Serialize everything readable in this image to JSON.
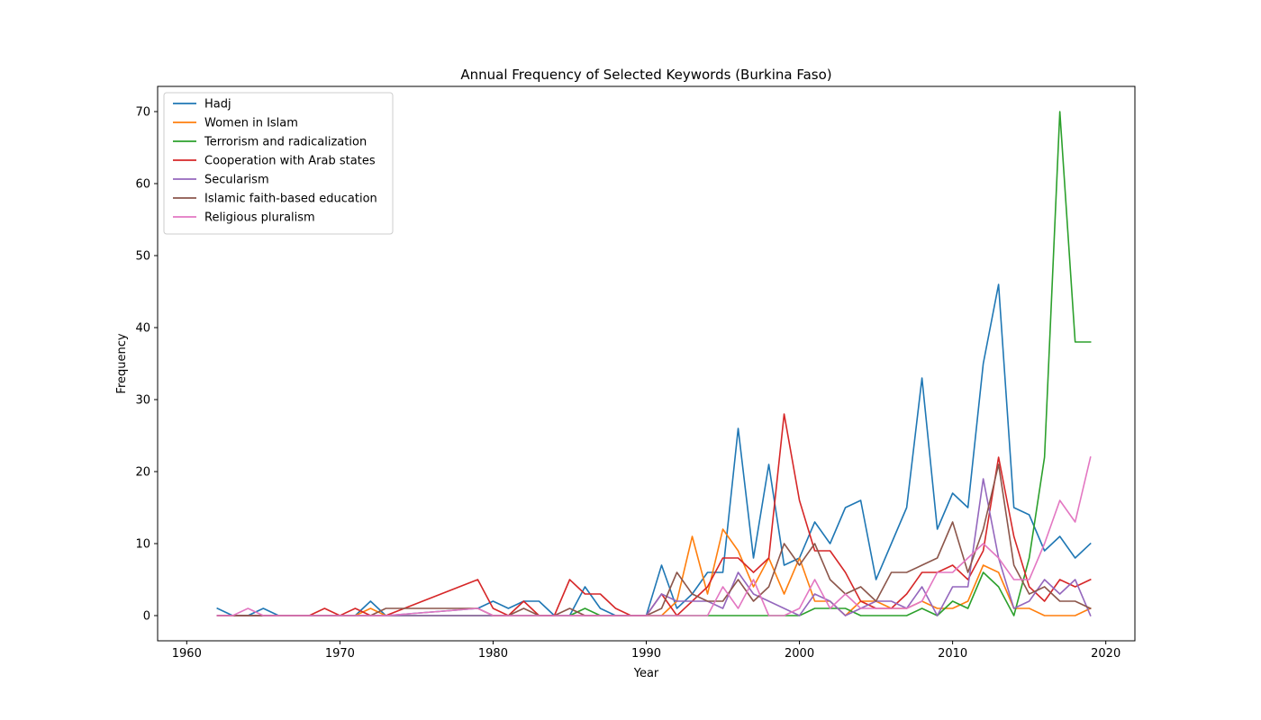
{
  "chart_data": {
    "type": "line",
    "title": "Annual Frequency of Selected Keywords (Burkina Faso)",
    "xlabel": "Year",
    "ylabel": "Frequency",
    "xlim": [
      1958.1,
      2021.9
    ],
    "ylim": [
      -3.5,
      73.5
    ],
    "xticks": [
      1960,
      1970,
      1980,
      1990,
      2000,
      2010,
      2020
    ],
    "yticks": [
      0,
      10,
      20,
      30,
      40,
      50,
      60,
      70
    ],
    "grid": false,
    "legend_position": "top-left",
    "series": [
      {
        "name": "Hadj",
        "color": "#1f77b4",
        "x": [
          1962,
          1963,
          1964,
          1965,
          1966,
          1967,
          1968,
          1969,
          1970,
          1971,
          1972,
          1973,
          1979,
          1980,
          1981,
          1982,
          1983,
          1984,
          1985,
          1986,
          1987,
          1988,
          1989,
          1990,
          1991,
          1992,
          1993,
          1994,
          1995,
          1996,
          1997,
          1998,
          1999,
          2000,
          2001,
          2002,
          2003,
          2004,
          2005,
          2006,
          2007,
          2008,
          2009,
          2010,
          2011,
          2012,
          2013,
          2014,
          2015,
          2016,
          2017,
          2018,
          2019
        ],
        "y": [
          1,
          0,
          0,
          1,
          0,
          0,
          0,
          0,
          0,
          0,
          2,
          0,
          1,
          2,
          1,
          2,
          2,
          0,
          0,
          4,
          1,
          0,
          0,
          0,
          7,
          1,
          3,
          6,
          6,
          26,
          8,
          21,
          7,
          8,
          13,
          10,
          15,
          16,
          5,
          10,
          15,
          33,
          12,
          17,
          15,
          35,
          46,
          15,
          14,
          9,
          11,
          8,
          10
        ]
      },
      {
        "name": "Women in Islam",
        "color": "#ff7f0e",
        "x": [
          1962,
          1963,
          1964,
          1965,
          1966,
          1967,
          1968,
          1969,
          1970,
          1971,
          1972,
          1973,
          1979,
          1980,
          1981,
          1982,
          1983,
          1984,
          1985,
          1986,
          1987,
          1988,
          1989,
          1990,
          1991,
          1992,
          1993,
          1994,
          1995,
          1996,
          1997,
          1998,
          1999,
          2000,
          2001,
          2002,
          2003,
          2004,
          2005,
          2006,
          2007,
          2008,
          2009,
          2010,
          2011,
          2012,
          2013,
          2014,
          2015,
          2016,
          2017,
          2018,
          2019
        ],
        "y": [
          0,
          0,
          0,
          0,
          0,
          0,
          0,
          0,
          0,
          0,
          1,
          0,
          0,
          0,
          0,
          0,
          0,
          0,
          0,
          0,
          0,
          0,
          0,
          0,
          0,
          2,
          11,
          3,
          12,
          9,
          4,
          8,
          3,
          8,
          2,
          2,
          0,
          2,
          2,
          1,
          1,
          2,
          1,
          1,
          2,
          7,
          6,
          1,
          1,
          0,
          0,
          0,
          1
        ]
      },
      {
        "name": "Terrorism and radicalization",
        "color": "#2ca02c",
        "x": [
          1962,
          1963,
          1964,
          1965,
          1966,
          1967,
          1968,
          1969,
          1970,
          1971,
          1972,
          1973,
          1979,
          1980,
          1981,
          1982,
          1983,
          1984,
          1985,
          1986,
          1987,
          1988,
          1989,
          1990,
          1991,
          1992,
          1993,
          1994,
          1995,
          1996,
          1997,
          1998,
          1999,
          2000,
          2001,
          2002,
          2003,
          2004,
          2005,
          2006,
          2007,
          2008,
          2009,
          2010,
          2011,
          2012,
          2013,
          2014,
          2015,
          2016,
          2017,
          2018,
          2019
        ],
        "y": [
          0,
          0,
          0,
          0,
          0,
          0,
          0,
          0,
          0,
          0,
          0,
          0,
          0,
          0,
          0,
          0,
          0,
          0,
          0,
          1,
          0,
          0,
          0,
          0,
          0,
          0,
          0,
          0,
          0,
          0,
          0,
          0,
          0,
          0,
          1,
          1,
          1,
          0,
          0,
          0,
          0,
          1,
          0,
          2,
          1,
          6,
          4,
          0,
          8,
          22,
          70,
          38,
          38
        ]
      },
      {
        "name": "Cooperation with Arab states",
        "color": "#d62728",
        "x": [
          1962,
          1963,
          1964,
          1965,
          1966,
          1967,
          1968,
          1969,
          1970,
          1971,
          1972,
          1973,
          1979,
          1980,
          1981,
          1982,
          1983,
          1984,
          1985,
          1986,
          1987,
          1988,
          1989,
          1990,
          1991,
          1992,
          1993,
          1994,
          1995,
          1996,
          1997,
          1998,
          1999,
          2000,
          2001,
          2002,
          2003,
          2004,
          2005,
          2006,
          2007,
          2008,
          2009,
          2010,
          2011,
          2012,
          2013,
          2014,
          2015,
          2016,
          2017,
          2018,
          2019
        ],
        "y": [
          0,
          0,
          0,
          0,
          0,
          0,
          0,
          1,
          0,
          1,
          0,
          0,
          5,
          1,
          0,
          2,
          0,
          0,
          5,
          3,
          3,
          1,
          0,
          0,
          3,
          0,
          2,
          4,
          8,
          8,
          6,
          8,
          28,
          16,
          9,
          9,
          6,
          2,
          1,
          1,
          3,
          6,
          6,
          7,
          5,
          9,
          22,
          11,
          4,
          2,
          5,
          4,
          5
        ]
      },
      {
        "name": "Secularism",
        "color": "#9467bd",
        "x": [
          1962,
          1963,
          1964,
          1965,
          1966,
          1967,
          1968,
          1969,
          1970,
          1971,
          1972,
          1973,
          1979,
          1980,
          1981,
          1982,
          1983,
          1984,
          1985,
          1986,
          1987,
          1988,
          1989,
          1990,
          1991,
          1992,
          1993,
          1994,
          1995,
          1996,
          1997,
          1998,
          1999,
          2000,
          2001,
          2002,
          2003,
          2004,
          2005,
          2006,
          2007,
          2008,
          2009,
          2010,
          2011,
          2012,
          2013,
          2014,
          2015,
          2016,
          2017,
          2018,
          2019
        ],
        "y": [
          0,
          0,
          0,
          0,
          0,
          0,
          0,
          0,
          0,
          0,
          0,
          0,
          0,
          0,
          0,
          0,
          0,
          0,
          0,
          0,
          0,
          0,
          0,
          0,
          3,
          2,
          2,
          2,
          1,
          6,
          3,
          2,
          1,
          0,
          3,
          2,
          0,
          1,
          2,
          2,
          1,
          4,
          0,
          4,
          4,
          19,
          8,
          1,
          2,
          5,
          3,
          5,
          0
        ]
      },
      {
        "name": "Islamic faith-based education",
        "color": "#8c564b",
        "x": [
          1962,
          1963,
          1964,
          1965,
          1966,
          1967,
          1968,
          1969,
          1970,
          1971,
          1972,
          1973,
          1979,
          1980,
          1981,
          1982,
          1983,
          1984,
          1985,
          1986,
          1987,
          1988,
          1989,
          1990,
          1991,
          1992,
          1993,
          1994,
          1995,
          1996,
          1997,
          1998,
          1999,
          2000,
          2001,
          2002,
          2003,
          2004,
          2005,
          2006,
          2007,
          2008,
          2009,
          2010,
          2011,
          2012,
          2013,
          2014,
          2015,
          2016,
          2017,
          2018,
          2019
        ],
        "y": [
          0,
          0,
          0,
          0,
          0,
          0,
          0,
          0,
          0,
          0,
          0,
          1,
          1,
          0,
          0,
          1,
          0,
          0,
          1,
          0,
          0,
          0,
          0,
          0,
          1,
          6,
          3,
          2,
          2,
          5,
          2,
          4,
          10,
          7,
          10,
          5,
          3,
          4,
          2,
          6,
          6,
          7,
          8,
          13,
          6,
          12,
          21,
          7,
          3,
          4,
          2,
          2,
          1
        ]
      },
      {
        "name": "Religious pluralism",
        "color": "#e377c2",
        "x": [
          1962,
          1963,
          1964,
          1965,
          1966,
          1967,
          1968,
          1969,
          1970,
          1971,
          1972,
          1973,
          1979,
          1980,
          1981,
          1982,
          1983,
          1984,
          1985,
          1986,
          1987,
          1988,
          1989,
          1990,
          1991,
          1992,
          1993,
          1994,
          1995,
          1996,
          1997,
          1998,
          1999,
          2000,
          2001,
          2002,
          2003,
          2004,
          2005,
          2006,
          2007,
          2008,
          2009,
          2010,
          2011,
          2012,
          2013,
          2014,
          2015,
          2016,
          2017,
          2018,
          2019
        ],
        "y": [
          0,
          0,
          1,
          0,
          0,
          0,
          0,
          0,
          0,
          0,
          0,
          0,
          1,
          0,
          0,
          0,
          0,
          0,
          0,
          0,
          0,
          0,
          0,
          0,
          0,
          0,
          0,
          0,
          4,
          1,
          5,
          0,
          0,
          1,
          5,
          1,
          3,
          1,
          1,
          1,
          1,
          2,
          6,
          6,
          8,
          10,
          8,
          5,
          5,
          10,
          16,
          13,
          22
        ]
      }
    ]
  }
}
